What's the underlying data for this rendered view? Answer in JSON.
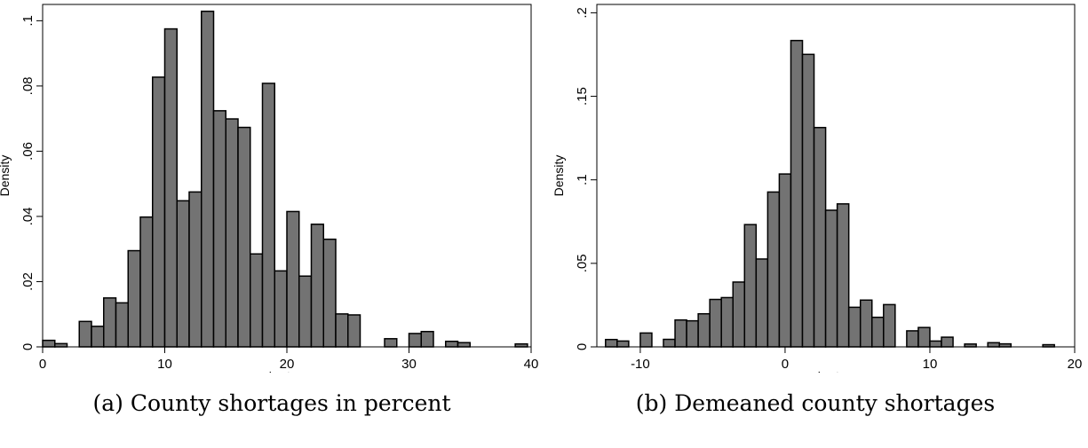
{
  "chart_data": [
    {
      "type": "bar",
      "histogram": true,
      "xlabel": "shortage",
      "ylabel": "Density",
      "xlim": [
        0,
        40
      ],
      "ylim": [
        0,
        0.105
      ],
      "xticks": [
        0,
        10,
        20,
        30,
        40
      ],
      "xtick_labels": [
        "0",
        "10",
        "20",
        "30",
        "40"
      ],
      "yticks": [
        0,
        0.02,
        0.04,
        0.06,
        0.08,
        0.1
      ],
      "ytick_labels": [
        "0",
        ".02",
        ".04",
        ".06",
        ".08",
        ".1"
      ],
      "bin_width": 1.0,
      "bin_starts": [
        0.0,
        1.0,
        3.0,
        4.0,
        5.0,
        6.0,
        7.0,
        8.0,
        9.0,
        10.0,
        11.0,
        12.0,
        13.0,
        14.0,
        15.0,
        16.0,
        17.0,
        18.0,
        19.0,
        20.0,
        21.0,
        22.0,
        23.0,
        24.0,
        25.0,
        28.0,
        30.0,
        31.0,
        33.0,
        34.0,
        38.7
      ],
      "values": [
        0.002,
        0.001,
        0.0078,
        0.0063,
        0.015,
        0.0135,
        0.0295,
        0.0398,
        0.0827,
        0.0975,
        0.0448,
        0.0475,
        0.1029,
        0.0724,
        0.0699,
        0.0673,
        0.0285,
        0.0808,
        0.0233,
        0.0415,
        0.0217,
        0.0376,
        0.033,
        0.0101,
        0.0098,
        0.0025,
        0.0041,
        0.0047,
        0.0017,
        0.0013,
        0.0009
      ],
      "bar_color": "#737373",
      "edge_color": "#000000",
      "grid": false
    },
    {
      "type": "bar",
      "histogram": true,
      "xlabel": "shortage",
      "ylabel": "Density",
      "xlim": [
        -13,
        20
      ],
      "ylim": [
        0,
        0.205
      ],
      "xticks": [
        -10,
        0,
        10,
        20
      ],
      "xtick_labels": [
        "-10",
        "0",
        "10",
        "20"
      ],
      "yticks": [
        0,
        0.05,
        0.1,
        0.15,
        0.2
      ],
      "ytick_labels": [
        "0",
        ".05",
        ".1",
        ".15",
        ".2"
      ],
      "bin_width": 0.8,
      "bin_starts": [
        -12.4,
        -11.6,
        -10.0,
        -8.4,
        -7.6,
        -6.8,
        -6.0,
        -5.2,
        -4.4,
        -3.6,
        -2.8,
        -2.0,
        -1.2,
        -0.4,
        0.4,
        1.2,
        2.0,
        2.8,
        3.6,
        4.4,
        5.2,
        6.0,
        6.8,
        8.4,
        9.2,
        10.0,
        10.8,
        12.4,
        14.0,
        14.8,
        17.8
      ],
      "values": [
        0.0044,
        0.0035,
        0.0083,
        0.0045,
        0.0161,
        0.0156,
        0.0198,
        0.0284,
        0.0295,
        0.0388,
        0.0732,
        0.0526,
        0.0927,
        0.1035,
        0.1834,
        0.1751,
        0.1313,
        0.0818,
        0.0856,
        0.0237,
        0.028,
        0.0177,
        0.0253,
        0.0096,
        0.0116,
        0.0035,
        0.0058,
        0.0017,
        0.0025,
        0.0018,
        0.0013
      ],
      "bar_color": "#737373",
      "edge_color": "#000000",
      "grid": false
    }
  ],
  "captions": {
    "a": "(a) County shortages in percent",
    "b": "(b) Demeaned county shortages"
  }
}
